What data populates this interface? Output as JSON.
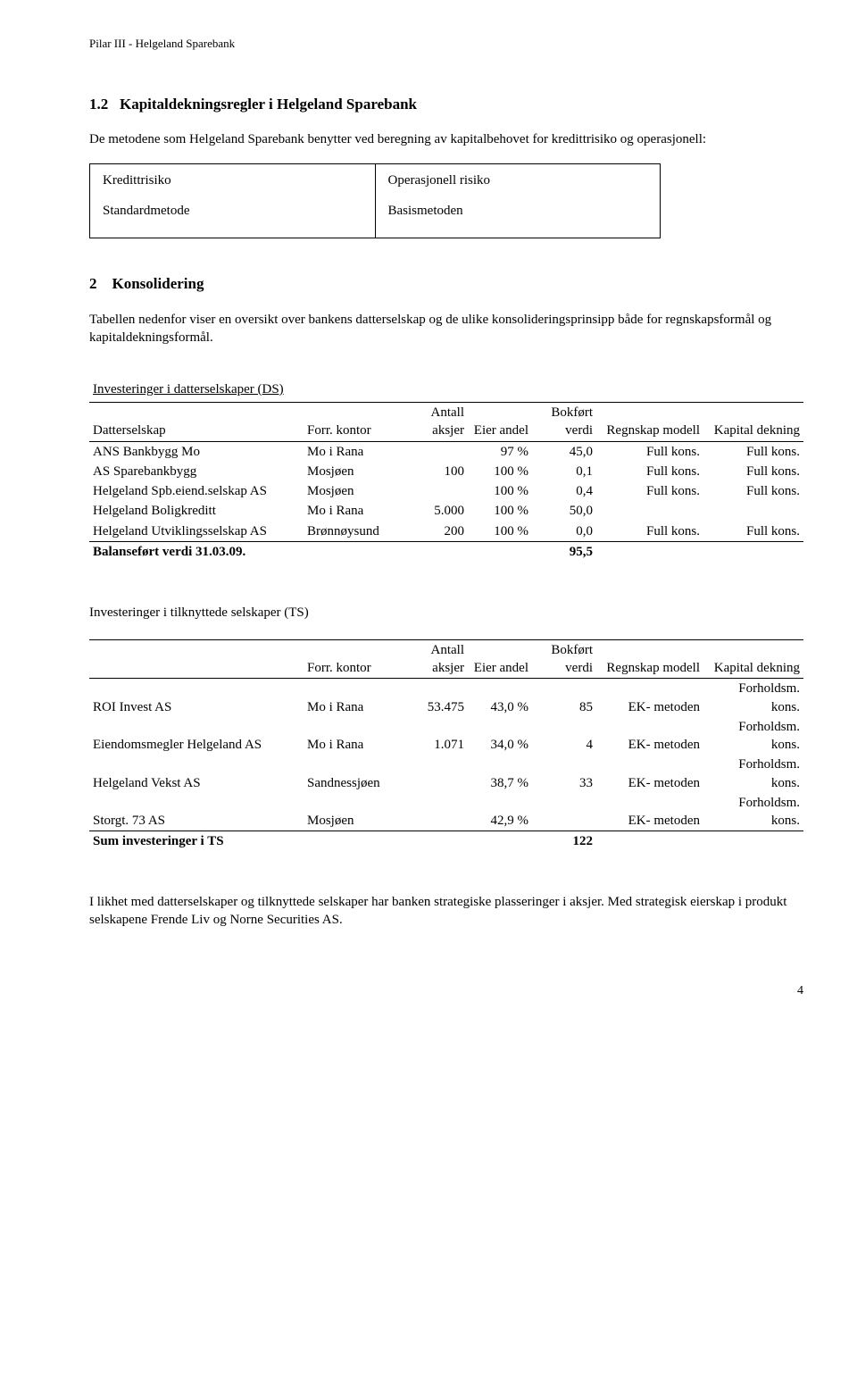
{
  "header": "Pilar III - Helgeland Sparebank",
  "section12": {
    "num": "1.2",
    "title": "Kapitaldekningsregler i Helgeland Sparebank",
    "intro": "De metodene som Helgeland Sparebank benytter ved beregning av kapitalbehovet for kredittrisiko og operasjonell:",
    "col1_h": "Kredittrisiko",
    "col2_h": "Operasjonell risiko",
    "col1_v": "Standardmetode",
    "col2_v": "Basismetoden"
  },
  "section2": {
    "num": "2",
    "title": "Konsolidering",
    "intro": "Tabellen nedenfor viser en oversikt over bankens datterselskap og de ulike konsolideringsprinsipp både for regnskapsformål og kapitaldekningsformål."
  },
  "ds": {
    "caption": "Investeringer i datterselskaper (DS)",
    "headers": [
      "Datterselskap",
      "Forr. kontor",
      "Antall aksjer",
      "Eier andel",
      "Bokført verdi",
      "Regnskap modell",
      "Kapital dekning"
    ],
    "rows": [
      [
        "ANS Bankbygg Mo",
        "Mo i Rana",
        "",
        "97 %",
        "45,0",
        "Full kons.",
        "Full kons."
      ],
      [
        "AS Sparebankbygg",
        "Mosjøen",
        "100",
        "100 %",
        "0,1",
        "Full kons.",
        "Full kons."
      ],
      [
        "Helgeland Spb.eiend.selskap AS",
        "Mosjøen",
        "",
        "100 %",
        "0,4",
        "Full kons.",
        "Full kons."
      ],
      [
        "Helgeland Boligkreditt",
        "Mo i Rana",
        "5.000",
        "100 %",
        "50,0",
        "",
        ""
      ],
      [
        "Helgeland Utviklingsselskap AS",
        "Brønnøysund",
        "200",
        "100 %",
        "0,0",
        "Full kons.",
        "Full kons."
      ]
    ],
    "total_label": "Balanseført verdi 31.03.09.",
    "total_val": "95,5"
  },
  "ts": {
    "caption": "Investeringer i tilknyttede selskaper (TS)",
    "headers": [
      "",
      "Forr. kontor",
      "Antall aksjer",
      "Eier andel",
      "Bokført verdi",
      "Regnskap modell",
      "Kapital dekning"
    ],
    "rows": [
      [
        "ROI Invest AS",
        "Mo i Rana",
        "53.475",
        "43,0 %",
        "85",
        "EK- metoden",
        "Forholdsm. kons."
      ],
      [
        "Eiendomsmegler Helgeland AS",
        "Mo i Rana",
        "1.071",
        "34,0 %",
        "4",
        "EK- metoden",
        "Forholdsm. kons."
      ],
      [
        "Helgeland Vekst AS",
        "Sandnessjøen",
        "",
        "38,7 %",
        "33",
        "EK- metoden",
        "Forholdsm. kons."
      ],
      [
        "Storgt. 73 AS",
        "Mosjøen",
        "",
        "42,9 %",
        "",
        "EK- metoden",
        "Forholdsm. kons."
      ]
    ],
    "total_label": "Sum investeringer i TS",
    "total_val": "122"
  },
  "closing": "I likhet med datterselskaper og tilknyttede selskaper har banken strategiske plasseringer i aksjer. Med strategisk eierskap i produkt selskapene Frende Liv og Norne Securities AS.",
  "page": "4"
}
